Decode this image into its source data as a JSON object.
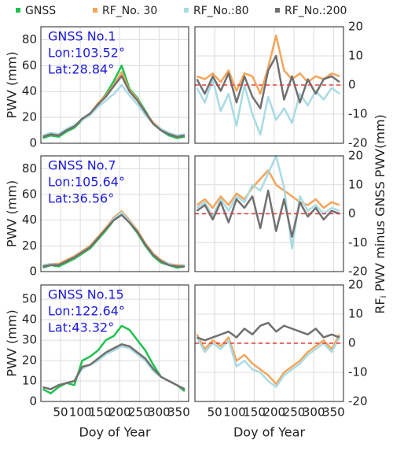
{
  "chart_data": [
    {
      "type": "line",
      "xlim": [
        0,
        375
      ],
      "xticks": [
        50,
        100,
        150,
        200,
        250,
        300,
        350
      ],
      "ylim": [
        0,
        90
      ],
      "yticks": [
        0,
        20,
        40,
        60,
        80
      ],
      "grid": true,
      "ylabel": "PWV (mm)",
      "annotations": [
        "GNSS No.1",
        "Lon:103.52°",
        "Lat:28.84°"
      ],
      "x": [
        5,
        25,
        45,
        65,
        85,
        105,
        125,
        145,
        165,
        185,
        205,
        225,
        245,
        265,
        285,
        305,
        325,
        345,
        365
      ],
      "series": [
        {
          "name": "GNSS",
          "color": "#1fc24f",
          "values": [
            4,
            6,
            5,
            9,
            12,
            18,
            22,
            30,
            38,
            48,
            60,
            42,
            35,
            25,
            15,
            10,
            6,
            4,
            5
          ]
        },
        {
          "name": "RF_No. 30",
          "color": "#f5a55a",
          "values": [
            5,
            7,
            6,
            10,
            13,
            19,
            23,
            31,
            37,
            45,
            55,
            41,
            34,
            24,
            16,
            11,
            7,
            5,
            6
          ]
        },
        {
          "name": "RF_No.:80",
          "color": "#a9dbe4",
          "values": [
            6,
            8,
            7,
            11,
            14,
            18,
            22,
            28,
            33,
            38,
            45,
            37,
            30,
            22,
            15,
            11,
            8,
            6,
            7
          ]
        },
        {
          "name": "RF_No.:200",
          "color": "#707070",
          "values": [
            5,
            7,
            6,
            10,
            13,
            19,
            23,
            30,
            36,
            44,
            52,
            40,
            33,
            24,
            15,
            10,
            7,
            5,
            6
          ]
        }
      ]
    },
    {
      "type": "line",
      "xlim": [
        0,
        375
      ],
      "xticks": [
        50,
        100,
        150,
        200,
        250,
        300,
        350
      ],
      "ylim": [
        -20,
        20
      ],
      "yticks": [
        -20,
        -10,
        0,
        10,
        20
      ],
      "grid": true,
      "hline": 0,
      "x": [
        5,
        25,
        45,
        65,
        85,
        105,
        125,
        145,
        165,
        185,
        205,
        225,
        245,
        265,
        285,
        305,
        325,
        345,
        365
      ],
      "series": [
        {
          "name": "RF_No. 30",
          "color": "#f5a55a",
          "values": [
            3,
            2,
            4,
            1,
            5,
            -2,
            4,
            3,
            -3,
            6,
            17,
            5,
            2,
            4,
            1,
            3,
            2,
            4,
            3
          ]
        },
        {
          "name": "RF_No.:80",
          "color": "#a9dbe4",
          "values": [
            -1,
            -6,
            2,
            -9,
            -3,
            -14,
            0,
            -10,
            -17,
            -4,
            -12,
            -8,
            -13,
            -3,
            -7,
            -2,
            -5,
            -1,
            -3
          ]
        },
        {
          "name": "RF_No.:200",
          "color": "#707070",
          "values": [
            2,
            -3,
            3,
            -2,
            4,
            -6,
            3,
            -4,
            -8,
            5,
            10,
            -5,
            3,
            -6,
            2,
            -3,
            2,
            3,
            1
          ]
        }
      ]
    },
    {
      "type": "line",
      "xlim": [
        0,
        375
      ],
      "xticks": [
        50,
        100,
        150,
        200,
        250,
        300,
        350
      ],
      "ylim": [
        0,
        90
      ],
      "yticks": [
        0,
        20,
        40,
        60,
        80
      ],
      "grid": true,
      "ylabel": "PWV (mm)",
      "annotations": [
        "GNSS No.7",
        "Lon:105.64°",
        "Lat:36.56°"
      ],
      "x": [
        5,
        25,
        45,
        65,
        85,
        105,
        125,
        145,
        165,
        185,
        205,
        225,
        245,
        265,
        285,
        305,
        325,
        345,
        365
      ],
      "series": [
        {
          "name": "GNSS",
          "color": "#1fc24f",
          "values": [
            3,
            5,
            4,
            7,
            10,
            14,
            18,
            25,
            32,
            40,
            45,
            38,
            30,
            20,
            12,
            7,
            5,
            3,
            4
          ]
        },
        {
          "name": "RF_No. 30",
          "color": "#f5a55a",
          "values": [
            5,
            6,
            6,
            9,
            12,
            16,
            20,
            27,
            34,
            42,
            47,
            40,
            32,
            22,
            14,
            9,
            6,
            5,
            5
          ]
        },
        {
          "name": "RF_No.:80",
          "color": "#a9dbe4",
          "values": [
            5,
            6,
            5,
            8,
            11,
            15,
            19,
            26,
            33,
            41,
            46,
            39,
            31,
            21,
            13,
            8,
            6,
            4,
            5
          ]
        },
        {
          "name": "RF_No.:200",
          "color": "#707070",
          "values": [
            4,
            5,
            5,
            8,
            11,
            15,
            19,
            26,
            33,
            40,
            44,
            38,
            31,
            21,
            13,
            8,
            5,
            4,
            4
          ]
        }
      ]
    },
    {
      "type": "line",
      "xlim": [
        0,
        375
      ],
      "xticks": [
        50,
        100,
        150,
        200,
        250,
        300,
        350
      ],
      "ylim": [
        -20,
        20
      ],
      "yticks": [
        -20,
        -10,
        0,
        10,
        20
      ],
      "grid": true,
      "hline": 0,
      "x": [
        5,
        25,
        45,
        65,
        85,
        105,
        125,
        145,
        165,
        185,
        205,
        225,
        245,
        265,
        285,
        305,
        325,
        345,
        365
      ],
      "series": [
        {
          "name": "RF_No. 30",
          "color": "#f5a55a",
          "values": [
            3,
            5,
            2,
            6,
            3,
            7,
            5,
            9,
            12,
            15,
            10,
            8,
            6,
            4,
            3,
            5,
            2,
            4,
            3
          ]
        },
        {
          "name": "RF_No.:80",
          "color": "#a9dbe4",
          "values": [
            2,
            4,
            -1,
            5,
            1,
            6,
            4,
            10,
            8,
            14,
            20,
            9,
            -12,
            6,
            1,
            3,
            0,
            2,
            1
          ]
        },
        {
          "name": "RF_No.:200",
          "color": "#707070",
          "values": [
            1,
            3,
            -2,
            4,
            -3,
            5,
            2,
            6,
            -5,
            8,
            -6,
            5,
            -8,
            4,
            -1,
            2,
            -2,
            1,
            0
          ]
        }
      ]
    },
    {
      "type": "line",
      "xlim": [
        0,
        375
      ],
      "xticks": [
        50,
        100,
        150,
        200,
        250,
        300,
        350
      ],
      "ylim": [
        0,
        57
      ],
      "yticks": [
        0,
        10,
        20,
        30,
        40,
        50
      ],
      "grid": true,
      "ylabel": "PWV (mm)",
      "xlabel": "Doy of Year",
      "annotations": [
        "GNSS No.15",
        "Lon:122.64°",
        "Lat:43.32°"
      ],
      "x": [
        5,
        25,
        45,
        65,
        85,
        105,
        125,
        145,
        165,
        185,
        205,
        225,
        245,
        265,
        285,
        305,
        325,
        345,
        365
      ],
      "series": [
        {
          "name": "GNSS",
          "color": "#1fc24f",
          "values": [
            6,
            4,
            7,
            9,
            8,
            20,
            22,
            25,
            30,
            32,
            37,
            35,
            30,
            25,
            18,
            12,
            10,
            8,
            5
          ]
        },
        {
          "name": "RF_No. 30",
          "color": "#f5a55a",
          "values": [
            7,
            6,
            8,
            9,
            10,
            17,
            18,
            20,
            24,
            26,
            28,
            27,
            24,
            21,
            15,
            12,
            10,
            8,
            6
          ]
        },
        {
          "name": "RF_No.:80",
          "color": "#a9dbe4",
          "values": [
            7,
            6,
            8,
            9,
            10,
            16,
            18,
            20,
            23,
            25,
            27,
            26,
            23,
            20,
            15,
            12,
            10,
            8,
            6
          ]
        },
        {
          "name": "RF_No.:200",
          "color": "#707070",
          "values": [
            7,
            6,
            8,
            9,
            10,
            17,
            18,
            21,
            24,
            26,
            28,
            27,
            24,
            21,
            16,
            12,
            10,
            8,
            6
          ]
        }
      ]
    },
    {
      "type": "line",
      "xlim": [
        0,
        375
      ],
      "xticks": [
        50,
        100,
        150,
        200,
        250,
        300,
        350
      ],
      "ylim": [
        -20,
        20
      ],
      "yticks": [
        -20,
        -10,
        0,
        10,
        20
      ],
      "grid": true,
      "hline": 0,
      "xlabel": "Doy of Year",
      "x": [
        5,
        25,
        45,
        65,
        85,
        105,
        125,
        145,
        165,
        185,
        205,
        225,
        245,
        265,
        285,
        305,
        325,
        345,
        365
      ],
      "series": [
        {
          "name": "RF_No. 30",
          "color": "#f5a55a",
          "values": [
            3,
            -2,
            1,
            -1,
            2,
            -6,
            -4,
            -7,
            -9,
            -11,
            -14,
            -10,
            -8,
            -6,
            -3,
            -1,
            1,
            -2,
            3
          ]
        },
        {
          "name": "RF_No.:80",
          "color": "#a9dbe4",
          "values": [
            2,
            -3,
            0,
            -2,
            1,
            -8,
            -6,
            -9,
            -10,
            -13,
            -15,
            -11,
            -9,
            -7,
            -4,
            -2,
            0,
            -3,
            2
          ]
        },
        {
          "name": "RF_No.:200",
          "color": "#707070",
          "values": [
            2,
            1,
            2,
            3,
            4,
            2,
            5,
            3,
            6,
            7,
            4,
            6,
            5,
            4,
            3,
            5,
            2,
            3,
            2
          ]
        }
      ]
    }
  ],
  "right_axis_label": {
    "base": "RF",
    "sub": "i",
    "rest": " PWV  minus  GNSS  PWV(mm)"
  }
}
